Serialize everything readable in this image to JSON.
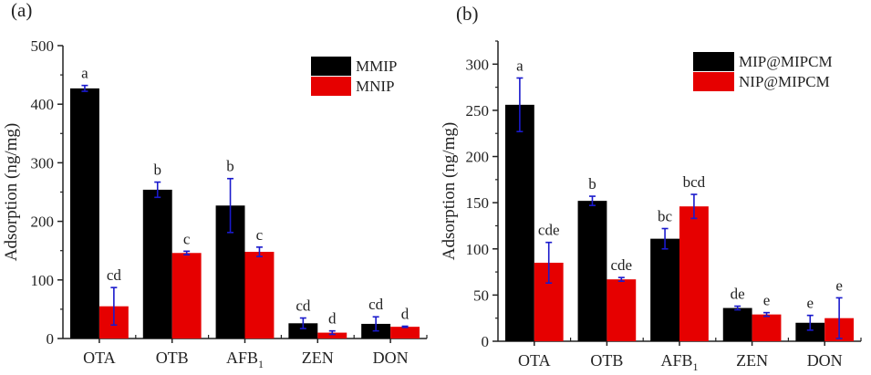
{
  "colors": {
    "series1": "#000000",
    "series2": "#e60000",
    "error_bar": "#1a1acc",
    "axis": "#222222"
  },
  "chart_data": [
    {
      "panel_label": "(a)",
      "type": "bar",
      "ylabel": "Adsorption (ng/mg)",
      "xlabel": "",
      "ylim": [
        0,
        500
      ],
      "yticks": [
        0,
        100,
        200,
        300,
        400,
        500
      ],
      "categories": [
        "OTA",
        "OTB",
        "AFB",
        "ZEN",
        "DON"
      ],
      "category_subscripts": [
        "",
        "",
        "1",
        "",
        ""
      ],
      "legend_position": "top-right",
      "series": [
        {
          "name": "MMIP",
          "values": [
            427,
            254,
            227,
            26,
            25
          ],
          "errors": [
            5,
            13,
            46,
            9,
            12
          ],
          "letters": [
            "a",
            "b",
            "b",
            "cd",
            "cd"
          ]
        },
        {
          "name": "MNIP",
          "values": [
            55,
            146,
            148,
            10,
            20
          ],
          "errors": [
            32,
            3,
            8,
            3,
            1
          ],
          "letters": [
            "cd",
            "c",
            "c",
            "d",
            "d"
          ]
        }
      ]
    },
    {
      "panel_label": "(b)",
      "type": "bar",
      "ylabel": "Adsorption (ng/mg)",
      "xlabel": "",
      "ylim": [
        0,
        325
      ],
      "yticks": [
        0,
        50,
        100,
        150,
        200,
        250,
        300
      ],
      "categories": [
        "OTA",
        "OTB",
        "AFB",
        "ZEN",
        "DON"
      ],
      "category_subscripts": [
        "",
        "",
        "1",
        "",
        ""
      ],
      "legend_position": "top-right",
      "series": [
        {
          "name": "MIP@MIPCM",
          "values": [
            256,
            152,
            111,
            36,
            20
          ],
          "errors": [
            29,
            5,
            11,
            2,
            8
          ],
          "letters": [
            "a",
            "b",
            "bc",
            "de",
            "e"
          ]
        },
        {
          "name": "NIP@MIPCM",
          "values": [
            85,
            67,
            146,
            29,
            25
          ],
          "errors": [
            22,
            2,
            13,
            2,
            22
          ],
          "letters": [
            "cde",
            "cde",
            "bcd",
            "e",
            "e"
          ]
        }
      ]
    }
  ]
}
